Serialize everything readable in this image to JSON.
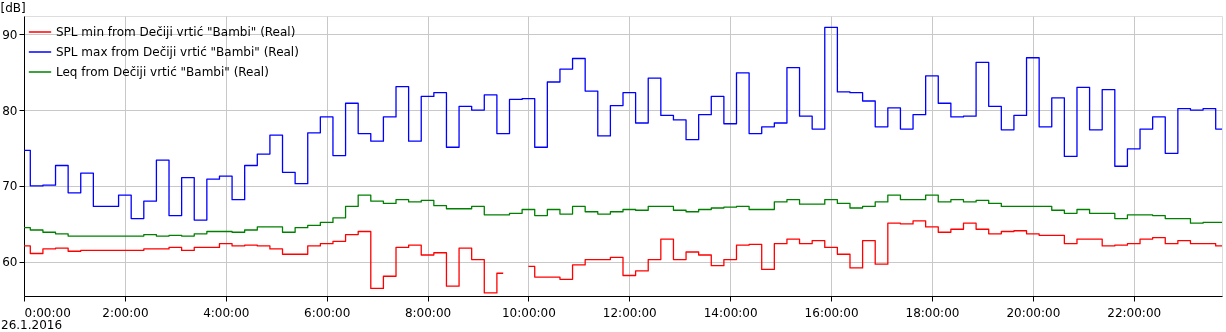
{
  "chart_data": {
    "type": "step",
    "ylabel": "[dB]",
    "annotations": [
      "26.1.2016"
    ],
    "x": [
      0,
      0.25,
      0.5,
      0.75,
      1,
      1.25,
      1.5,
      1.75,
      2,
      2.25,
      2.5,
      2.75,
      3,
      3.25,
      3.5,
      3.75,
      4,
      4.25,
      4.5,
      4.75,
      5,
      5.25,
      5.5,
      5.75,
      6,
      6.25,
      6.5,
      6.75,
      7,
      7.25,
      7.5,
      7.75,
      8,
      8.25,
      8.5,
      8.75,
      9,
      9.25,
      9.5,
      9.75,
      10,
      10.25,
      10.5,
      10.75,
      11,
      11.25,
      11.5,
      11.75,
      12,
      12.25,
      12.5,
      12.75,
      13,
      13.25,
      13.5,
      13.75,
      14,
      14.25,
      14.5,
      14.75,
      15,
      15.25,
      15.5,
      15.75,
      16,
      16.25,
      16.5,
      16.75,
      17,
      17.25,
      17.5,
      17.75,
      18,
      18.25,
      18.5,
      18.75,
      19,
      19.25,
      19.5,
      19.75,
      20,
      20.25,
      20.5,
      20.75,
      21,
      21.25,
      21.5,
      21.75,
      22,
      22.25,
      22.5,
      22.75,
      23,
      23.25,
      23.5,
      23.75
    ],
    "series": [
      {
        "name": "SPL min from Dečiji vrtić \"Bambi\" (Real)",
        "color": "#ff0000",
        "values": [
          62.1,
          61.1,
          61.7,
          61.8,
          61.4,
          61.5,
          61.5,
          61.5,
          61.5,
          61.5,
          61.7,
          61.7,
          61.9,
          61.5,
          61.9,
          61.9,
          62.4,
          62.1,
          62.2,
          62.1,
          61.7,
          61.0,
          61.0,
          62.1,
          62.4,
          62.7,
          63.6,
          64.0,
          56.5,
          58.1,
          61.9,
          62.2,
          60.9,
          61.2,
          56.8,
          61.8,
          60.3,
          55.9,
          58.5,
          null,
          59.4,
          58.0,
          58.0,
          57.7,
          59.6,
          60.3,
          60.3,
          60.6,
          58.2,
          58.8,
          60.3,
          63.0,
          60.3,
          61.3,
          60.9,
          59.5,
          60.3,
          62.2,
          62.3,
          59.0,
          62.4,
          63.0,
          62.4,
          62.8,
          61.9,
          61.0,
          59.2,
          62.8,
          59.7,
          65.1,
          65.0,
          65.4,
          64.6,
          63.9,
          64.3,
          65.1,
          64.3,
          63.7,
          64.0,
          64.1,
          63.7,
          63.5,
          63.5,
          62.4,
          63.0,
          63.0,
          62.1,
          62.2,
          62.4,
          63.0,
          63.2,
          62.4,
          62.8,
          62.4,
          62.4,
          62.1
        ]
      },
      {
        "name": "SPL max from Dečiji vrtić \"Bambi\" (Real)",
        "color": "#0000ff",
        "values": [
          74.7,
          70.0,
          70.1,
          72.7,
          69.1,
          71.7,
          67.3,
          67.3,
          68.8,
          65.7,
          68.0,
          73.4,
          66.1,
          71.1,
          65.5,
          70.9,
          71.3,
          68.2,
          72.7,
          74.2,
          76.7,
          71.8,
          70.3,
          77.0,
          79.1,
          74.0,
          80.9,
          76.9,
          75.9,
          79.1,
          83.1,
          75.9,
          81.8,
          82.3,
          75.1,
          80.5,
          80.0,
          82.0,
          76.9,
          81.4,
          81.5,
          75.1,
          83.7,
          85.4,
          86.8,
          82.5,
          76.6,
          80.6,
          82.3,
          78.3,
          84.2,
          79.3,
          78.7,
          76.1,
          79.4,
          81.8,
          78.2,
          84.9,
          76.9,
          77.8,
          78.3,
          85.6,
          79.2,
          77.5,
          90.9,
          82.4,
          82.3,
          81.2,
          77.8,
          80.3,
          77.5,
          79.4,
          84.5,
          80.9,
          79.1,
          79.2,
          86.3,
          80.5,
          77.4,
          79.3,
          86.9,
          77.8,
          81.6,
          73.9,
          83.0,
          77.4,
          82.7,
          72.6,
          74.9,
          77.5,
          79.1,
          74.3,
          80.2,
          80.0,
          80.2,
          77.5
        ]
      },
      {
        "name": "Leq from Dečiji vrtić \"Bambi\" (Real)",
        "color": "#008000",
        "values": [
          64.5,
          64.2,
          63.9,
          63.7,
          63.4,
          63.4,
          63.4,
          63.4,
          63.4,
          63.4,
          63.6,
          63.4,
          63.5,
          63.4,
          63.7,
          64.0,
          64.0,
          63.9,
          64.2,
          64.6,
          64.6,
          63.9,
          64.5,
          64.8,
          65.2,
          65.8,
          67.3,
          68.8,
          68.0,
          67.7,
          68.2,
          67.9,
          68.1,
          67.4,
          67.0,
          67.0,
          67.3,
          66.2,
          66.2,
          66.4,
          66.9,
          66.1,
          66.9,
          66.3,
          67.3,
          66.6,
          66.3,
          66.6,
          66.9,
          66.8,
          67.3,
          67.3,
          66.8,
          66.6,
          66.9,
          67.1,
          67.2,
          67.3,
          66.9,
          66.9,
          67.9,
          68.2,
          67.6,
          67.6,
          68.2,
          67.7,
          67.1,
          67.3,
          67.9,
          68.8,
          68.2,
          68.2,
          68.8,
          67.9,
          68.2,
          67.9,
          68.1,
          67.7,
          67.3,
          67.3,
          67.3,
          67.3,
          66.8,
          66.4,
          66.9,
          66.4,
          66.4,
          65.7,
          66.2,
          66.2,
          66.1,
          65.7,
          65.7,
          65.1,
          65.2,
          65.2
        ]
      }
    ],
    "xlim": [
      0,
      23.75
    ],
    "xticks": [
      {
        "value": 0,
        "label": "0:00:00"
      },
      {
        "value": 2,
        "label": "2:00:00"
      },
      {
        "value": 4,
        "label": "4:00:00"
      },
      {
        "value": 6,
        "label": "6:00:00"
      },
      {
        "value": 8,
        "label": "8:00:00"
      },
      {
        "value": 10,
        "label": "10:00:00"
      },
      {
        "value": 12,
        "label": "12:00:00"
      },
      {
        "value": 14,
        "label": "14:00:00"
      },
      {
        "value": 16,
        "label": "16:00:00"
      },
      {
        "value": 18,
        "label": "18:00:00"
      },
      {
        "value": 20,
        "label": "20:00:00"
      },
      {
        "value": 22,
        "label": "22:00:00"
      }
    ],
    "ylim": [
      55.5,
      92.4
    ],
    "yticks": [
      60,
      70,
      80,
      90
    ],
    "grid": true,
    "legend": "top left",
    "line_style": "solid",
    "marker": "none"
  }
}
